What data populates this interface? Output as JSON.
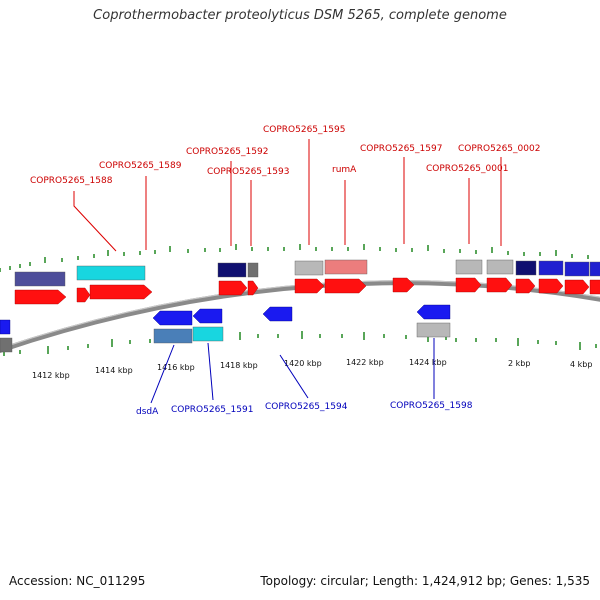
{
  "title": "Coprothermobacter proteolyticus DSM 5265, complete genome",
  "footer": {
    "accession": "Accession: NC_011295",
    "summary": "Topology: circular; Length: 1,424,912 bp; Genes: 1,535"
  },
  "colors": {
    "cds_red": "#ff0000",
    "gene_label_top": "#cc0000",
    "gene_label_bottom": "#0000bb",
    "tick_green": "#2f8f2f",
    "backbone": "#808080"
  },
  "axis_labels": [
    "1412 kbp",
    "1414 kbp",
    "1416 kbp",
    "1418 kbp",
    "1420 kbp",
    "1422 kbp",
    "1424 kbp",
    "2 kbp",
    "4 kbp"
  ],
  "top_labels": [
    "COPRO5265_1588",
    "COPRO5265_1589",
    "COPRO5265_1592",
    "COPRO5265_1593",
    "COPRO5265_1595",
    "rumA",
    "COPRO5265_1597",
    "COPRO5265_0002",
    "COPRO5265_0001"
  ],
  "bottom_labels": [
    "dsdA",
    "COPRO5265_1591",
    "COPRO5265_1594",
    "COPRO5265_1598"
  ]
}
